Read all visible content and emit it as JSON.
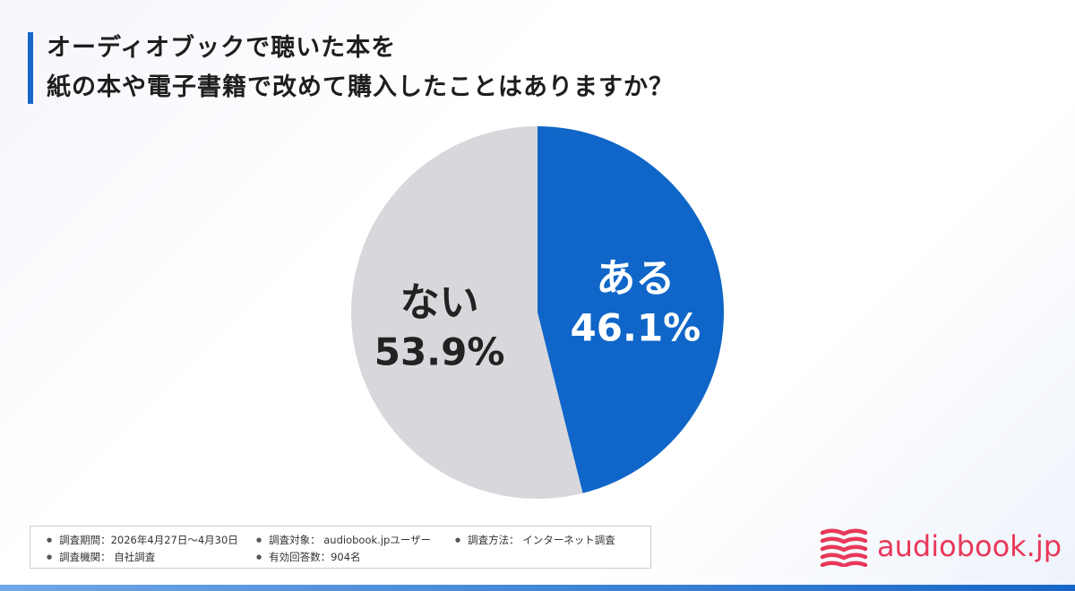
{
  "title": {
    "line1": "オーディオブックで聴いた本を",
    "line2": "紙の本や電子書籍で改めて購入したことはありますか？"
  },
  "chart_data": {
    "type": "pie",
    "slices": [
      {
        "label": "ある",
        "value": 46.1,
        "value_text": "46.1%",
        "color": "#0f66c8",
        "text_color": "#ffffff"
      },
      {
        "label": "ない",
        "value": 53.9,
        "value_text": "53.9%",
        "color": "#d8d8dc",
        "text_color": "#222222"
      }
    ],
    "start": "12 o'clock",
    "direction": "clockwise"
  },
  "survey": {
    "period": "調査期間：2026年4月27日〜4月30日",
    "target": "調査対象： audiobook.jpユーザー",
    "method": "調査方法： インターネット調査",
    "agency": "調査機関： 自社調査",
    "responses": "有効回答数：904名"
  },
  "brand": {
    "name": "audiobook.jp",
    "color": "#e8385a",
    "icon": "book-stack-logo-icon"
  },
  "accent_color": "#1766c9"
}
